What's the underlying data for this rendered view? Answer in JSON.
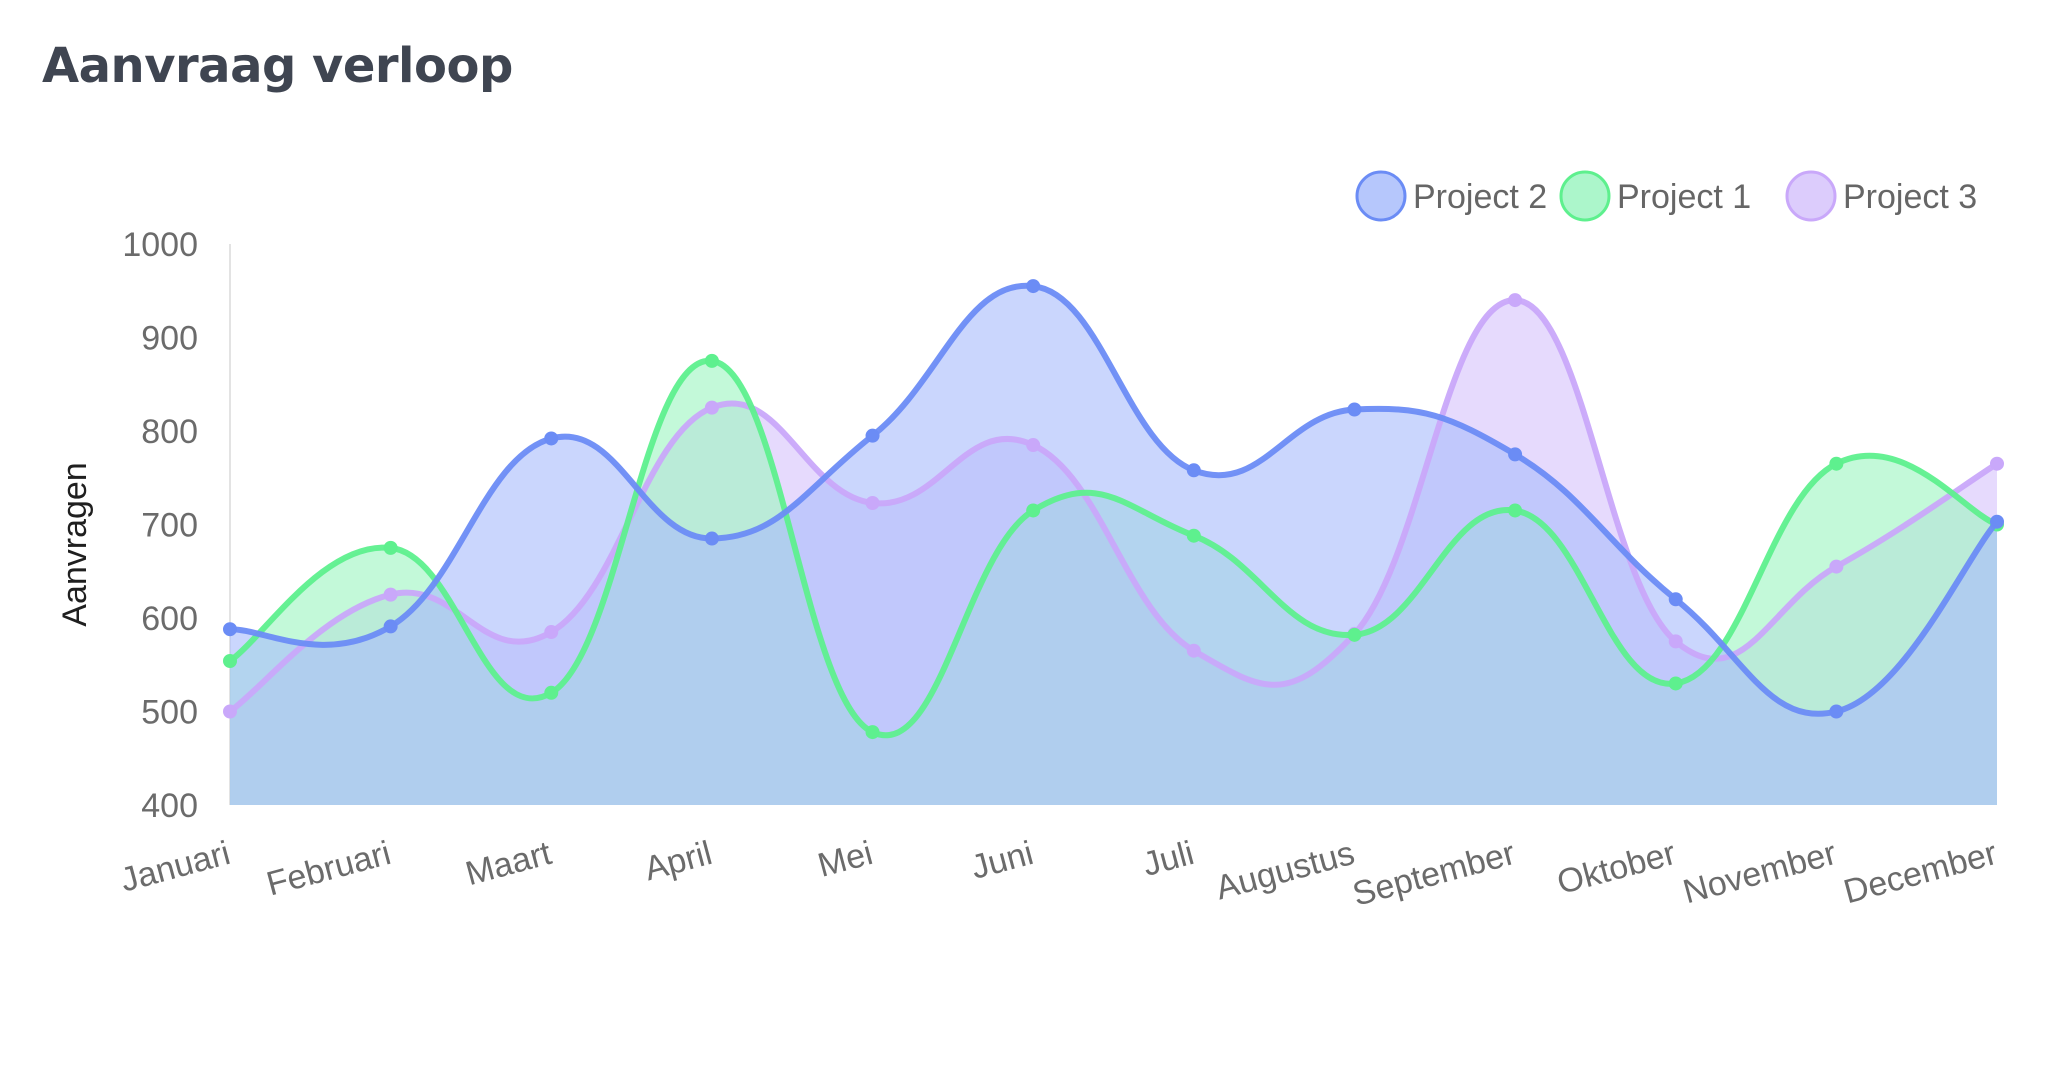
{
  "card": {
    "title": "Aanvraag verloop"
  },
  "chart_data": {
    "type": "area",
    "title": "",
    "xlabel": "",
    "ylabel": "Aanvragen",
    "ylim": [
      400,
      1000
    ],
    "yticks": [
      1000,
      900,
      800,
      700,
      600,
      500,
      400
    ],
    "grid": false,
    "legend_position": "top-right",
    "curve": "smooth",
    "categories": [
      "Januari",
      "Februari",
      "Maart",
      "April",
      "Mei",
      "Juni",
      "Juli",
      "Augustus",
      "September",
      "Oktober",
      "November",
      "December"
    ],
    "series": [
      {
        "name": "Project 2",
        "line_color": "#6b8cf5",
        "fill_color": "#a9bdfc",
        "values": [
          588,
          591,
          792,
          685,
          795,
          955,
          758,
          823,
          775,
          620,
          500,
          703
        ]
      },
      {
        "name": "Project 1",
        "line_color": "#5ef08e",
        "fill_color": "#9ef5c2",
        "values": [
          554,
          675,
          520,
          875,
          478,
          715,
          688,
          582,
          715,
          530,
          765,
          700
        ]
      },
      {
        "name": "Project 3",
        "line_color": "#c9a8fa",
        "fill_color": "#d6c3fc",
        "values": [
          500,
          625,
          585,
          825,
          723,
          785,
          565,
          583,
          940,
          575,
          655,
          765
        ]
      }
    ]
  }
}
